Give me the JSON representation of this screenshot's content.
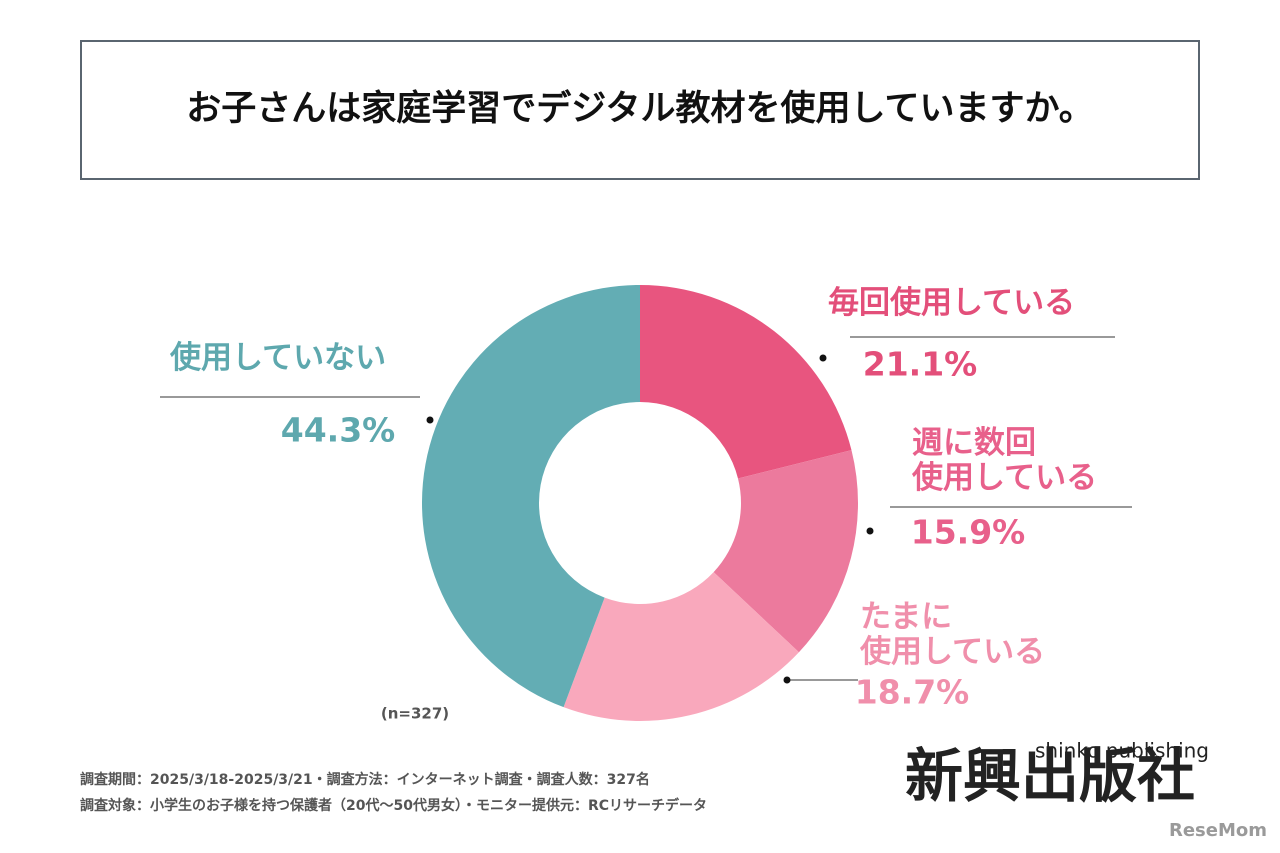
{
  "chart_data": {
    "type": "pie",
    "donut": true,
    "title": "お子さんは家庭学習でデジタル教材を使用していますか。",
    "categories": [
      "毎回使用している",
      "週に数回\n使用している",
      "たまに\n使用している",
      "使用していない"
    ],
    "values": [
      21.1,
      15.9,
      18.7,
      44.3
    ],
    "value_labels": [
      "21.1%",
      "15.9%",
      "18.7%",
      "44.3%"
    ],
    "colors": [
      "#e8557f",
      "#ec7a9d",
      "#f9a8bc",
      "#63adb4"
    ],
    "label_colors": [
      "#e34f7a",
      "#e8608b",
      "#f08fab",
      "#5ea8ae"
    ],
    "note": "(n=327)"
  },
  "footnotes": [
    "調査期間：2025/3/18-2025/3/21・調査方法：インターネット調査・調査人数：327名",
    "調査対象：小学生のお子様を持つ保護者（20代～50代男女）・モニター提供元：RCリサーチデータ"
  ],
  "logo": {
    "name": "新興出版社",
    "tagline": "shinko publishing",
    "source": "ReseMom"
  }
}
